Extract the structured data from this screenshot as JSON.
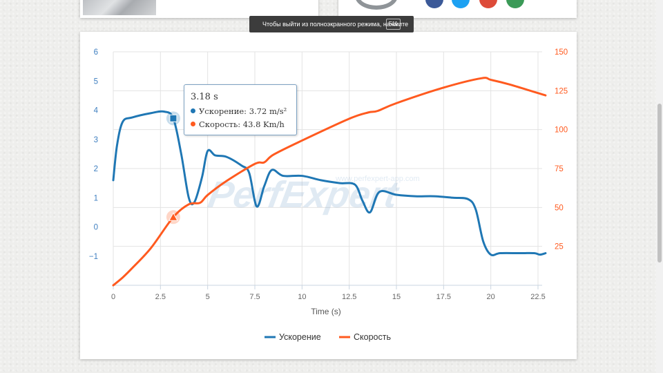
{
  "fullscreen_notice": {
    "text": "Чтобы выйти из полноэкранного режима, нажмите",
    "key": "F11"
  },
  "watermark": {
    "url": "www.perfexpert-app.com",
    "logo": "PerfExpert"
  },
  "social_icons": [
    "facebook-icon",
    "twitter-icon",
    "google-plus-icon",
    "mail-icon"
  ],
  "tooltip": {
    "title": "3.18 s",
    "rows": [
      {
        "name": "Ускорение",
        "value": "3.72 m/s²",
        "color": "#1f77b4"
      },
      {
        "name": "Скорость",
        "value": "43.8 Km/h",
        "color": "#ff5a1f"
      }
    ]
  },
  "chart_data": {
    "type": "line",
    "xlabel": "Time (s)",
    "xlim": [
      0,
      23
    ],
    "x_ticks": [
      "0",
      "2.5",
      "5",
      "7.5",
      "10",
      "12.5",
      "15",
      "17.5",
      "20",
      "22.5"
    ],
    "y_left_ticks": [
      "6",
      "5",
      "4",
      "3",
      "2",
      "1",
      "0",
      "−1"
    ],
    "y_left_range": [
      -2,
      6
    ],
    "y_right_ticks": [
      "150",
      "125",
      "100",
      "75",
      "50",
      "25"
    ],
    "y_right_range": [
      0,
      150
    ],
    "grid": true,
    "legend_position": "bottom-center",
    "series": [
      {
        "name": "Ускорение",
        "axis": "left",
        "color": "#1f77b4",
        "points": [
          [
            0,
            1.6
          ],
          [
            0.2,
            2.8
          ],
          [
            0.5,
            3.6
          ],
          [
            1,
            3.75
          ],
          [
            2,
            3.9
          ],
          [
            2.7,
            3.95
          ],
          [
            3.18,
            3.72
          ],
          [
            3.6,
            2.5
          ],
          [
            4,
            1.0
          ],
          [
            4.3,
            0.85
          ],
          [
            4.7,
            1.7
          ],
          [
            5,
            2.6
          ],
          [
            5.4,
            2.45
          ],
          [
            6,
            2.4
          ],
          [
            6.8,
            2.1
          ],
          [
            7.2,
            1.85
          ],
          [
            7.6,
            0.7
          ],
          [
            8,
            1.4
          ],
          [
            8.4,
            1.95
          ],
          [
            9,
            1.75
          ],
          [
            10,
            1.75
          ],
          [
            11,
            1.6
          ],
          [
            12,
            1.5
          ],
          [
            12.8,
            1.45
          ],
          [
            13.2,
            0.9
          ],
          [
            13.6,
            0.5
          ],
          [
            14.1,
            1.2
          ],
          [
            15,
            1.1
          ],
          [
            16,
            1.05
          ],
          [
            17,
            1.05
          ],
          [
            18,
            1.0
          ],
          [
            18.8,
            0.95
          ],
          [
            19.2,
            0.6
          ],
          [
            19.6,
            -0.5
          ],
          [
            20,
            -0.95
          ],
          [
            20.5,
            -0.9
          ],
          [
            21.5,
            -0.9
          ],
          [
            22.3,
            -0.9
          ],
          [
            22.6,
            -0.95
          ],
          [
            22.9,
            -0.9
          ]
        ]
      },
      {
        "name": "Скорость",
        "axis": "right",
        "color": "#ff5a1f",
        "points": [
          [
            0,
            0
          ],
          [
            0.5,
            5
          ],
          [
            1,
            11
          ],
          [
            2,
            24
          ],
          [
            3.18,
            43.8
          ],
          [
            4,
            52
          ],
          [
            4.6,
            53
          ],
          [
            5,
            58
          ],
          [
            6,
            67
          ],
          [
            7.5,
            78
          ],
          [
            8,
            79
          ],
          [
            8.5,
            84
          ],
          [
            10,
            93
          ],
          [
            12.5,
            107
          ],
          [
            13.5,
            111
          ],
          [
            14,
            112
          ],
          [
            15,
            117
          ],
          [
            17.5,
            127
          ],
          [
            19.5,
            133
          ],
          [
            20,
            132
          ],
          [
            21,
            129
          ],
          [
            22.9,
            122
          ]
        ]
      }
    ]
  }
}
